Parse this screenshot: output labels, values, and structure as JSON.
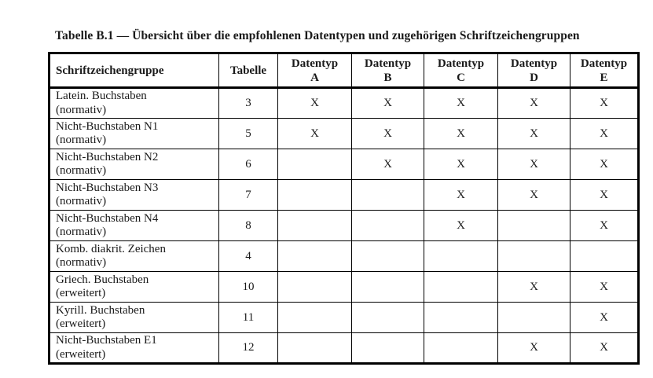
{
  "title": "Tabelle B.1 — Übersicht über die empfohlenen Datentypen und zugehörigen Schriftzeichengruppen",
  "colors": {
    "background": "#ffffff",
    "text": "#1a1a1a",
    "border": "#000000"
  },
  "table": {
    "mark_symbol": "X",
    "columns": [
      {
        "id": "schriftzeichengruppe",
        "label": "Schriftzeichengruppe",
        "sub": ""
      },
      {
        "id": "tabelle",
        "label": "Tabelle",
        "sub": ""
      },
      {
        "id": "datentyp-a",
        "label": "Datentyp",
        "sub": "A"
      },
      {
        "id": "datentyp-b",
        "label": "Datentyp",
        "sub": "B"
      },
      {
        "id": "datentyp-c",
        "label": "Datentyp",
        "sub": "C"
      },
      {
        "id": "datentyp-d",
        "label": "Datentyp",
        "sub": "D"
      },
      {
        "id": "datentyp-e",
        "label": "Datentyp",
        "sub": "E"
      }
    ],
    "rows": [
      {
        "group": "Latein. Buchstaben",
        "qualifier": "(normativ)",
        "tabelle": "3",
        "marks": [
          "X",
          "X",
          "X",
          "X",
          "X"
        ]
      },
      {
        "group": "Nicht-Buchstaben N1",
        "qualifier": "(normativ)",
        "tabelle": "5",
        "marks": [
          "X",
          "X",
          "X",
          "X",
          "X"
        ]
      },
      {
        "group": "Nicht-Buchstaben N2",
        "qualifier": "(normativ)",
        "tabelle": "6",
        "marks": [
          "",
          "X",
          "X",
          "X",
          "X"
        ]
      },
      {
        "group": "Nicht-Buchstaben N3",
        "qualifier": "(normativ)",
        "tabelle": "7",
        "marks": [
          "",
          "",
          "X",
          "X",
          "X"
        ]
      },
      {
        "group": "Nicht-Buchstaben N4",
        "qualifier": "(normativ)",
        "tabelle": "8",
        "marks": [
          "",
          "",
          "X",
          "",
          "X"
        ]
      },
      {
        "group": "Komb. diakrit. Zeichen",
        "qualifier": "(normativ)",
        "tabelle": "4",
        "marks": [
          "",
          "",
          "",
          "",
          ""
        ]
      },
      {
        "group": "Griech. Buchstaben",
        "qualifier": "(erweitert)",
        "tabelle": "10",
        "marks": [
          "",
          "",
          "",
          "X",
          "X"
        ]
      },
      {
        "group": "Kyrill. Buchstaben",
        "qualifier": "(erweitert)",
        "tabelle": "11",
        "marks": [
          "",
          "",
          "",
          "",
          "X"
        ]
      },
      {
        "group": "Nicht-Buchstaben E1",
        "qualifier": "(erweitert)",
        "tabelle": "12",
        "marks": [
          "",
          "",
          "",
          "X",
          "X"
        ]
      }
    ]
  }
}
